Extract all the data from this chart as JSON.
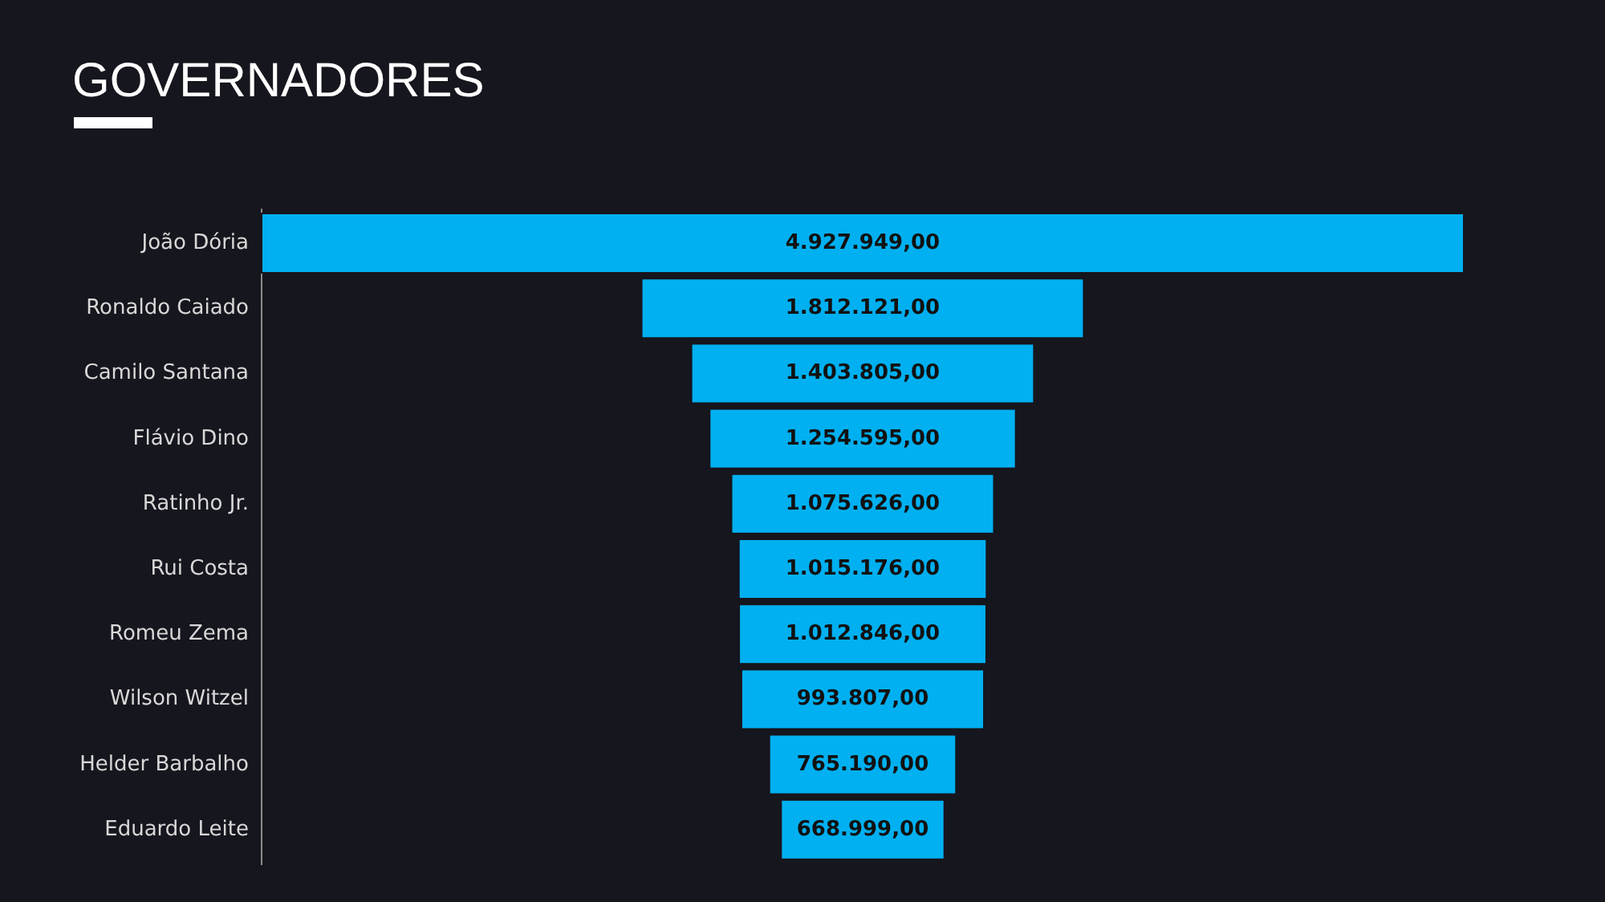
{
  "chart_data": {
    "type": "other",
    "title": "GOVERNADORES",
    "categories": [
      "João Dória",
      "Ronaldo Caiado",
      "Camilo Santana",
      "Flávio Dino",
      "Ratinho Jr.",
      "Rui Costa",
      "Romeu Zema",
      "Wilson Witzel",
      "Helder Barbalho",
      "Eduardo Leite"
    ],
    "values": [
      4927949,
      1812121,
      1403805,
      1254595,
      1075626,
      1015176,
      1012846,
      993807,
      765190,
      668999
    ],
    "value_labels": [
      "4.927.949,00",
      "1.812.121,00",
      "1.403.805,00",
      "1.254.595,00",
      "1.075.626,00",
      "1.015.176,00",
      "1.012.846,00",
      "993.807,00",
      "765.190,00",
      "668.999,00"
    ],
    "color": "#00b0f0"
  }
}
